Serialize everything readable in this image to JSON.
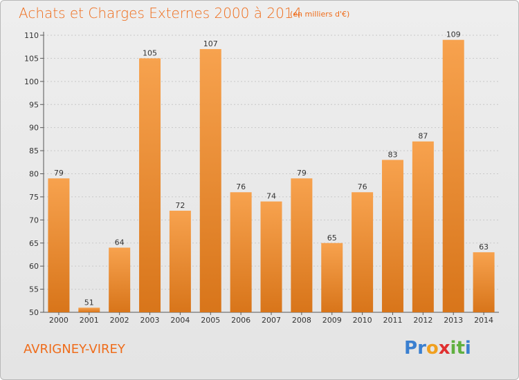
{
  "header": {
    "title": "Achats et Charges Externes 2000 à 2014",
    "subtitle": "(en milliers d'€)"
  },
  "footer": {
    "commune": "AVRIGNEY-VIREY",
    "logo_letters": [
      {
        "char": "P",
        "color": "#3a7fd0"
      },
      {
        "char": "r",
        "color": "#3a7fd0"
      },
      {
        "char": "o",
        "color": "#f0a020"
      },
      {
        "char": "x",
        "color": "#e03030"
      },
      {
        "char": "i",
        "color": "#60b040"
      },
      {
        "char": "t",
        "color": "#60b040"
      },
      {
        "char": "i",
        "color": "#3a7fd0"
      }
    ]
  },
  "chart_data": {
    "type": "bar",
    "title": "Achats et Charges Externes 2000 à 2014",
    "subtitle": "(en milliers d'€)",
    "categories": [
      "2000",
      "2001",
      "2002",
      "2003",
      "2004",
      "2005",
      "2006",
      "2007",
      "2008",
      "2009",
      "2010",
      "2011",
      "2012",
      "2013",
      "2014"
    ],
    "values": [
      79,
      51,
      64,
      105,
      72,
      107,
      76,
      74,
      79,
      65,
      76,
      83,
      87,
      109,
      63
    ],
    "ylim": [
      50,
      110
    ],
    "yticks": [
      50,
      55,
      60,
      65,
      70,
      75,
      80,
      85,
      90,
      95,
      100,
      105,
      110
    ],
    "grid": true,
    "bar_color_top": "#f7a24e",
    "bar_color_bottom": "#d8751a",
    "accent_color": "#ef6c1a"
  }
}
